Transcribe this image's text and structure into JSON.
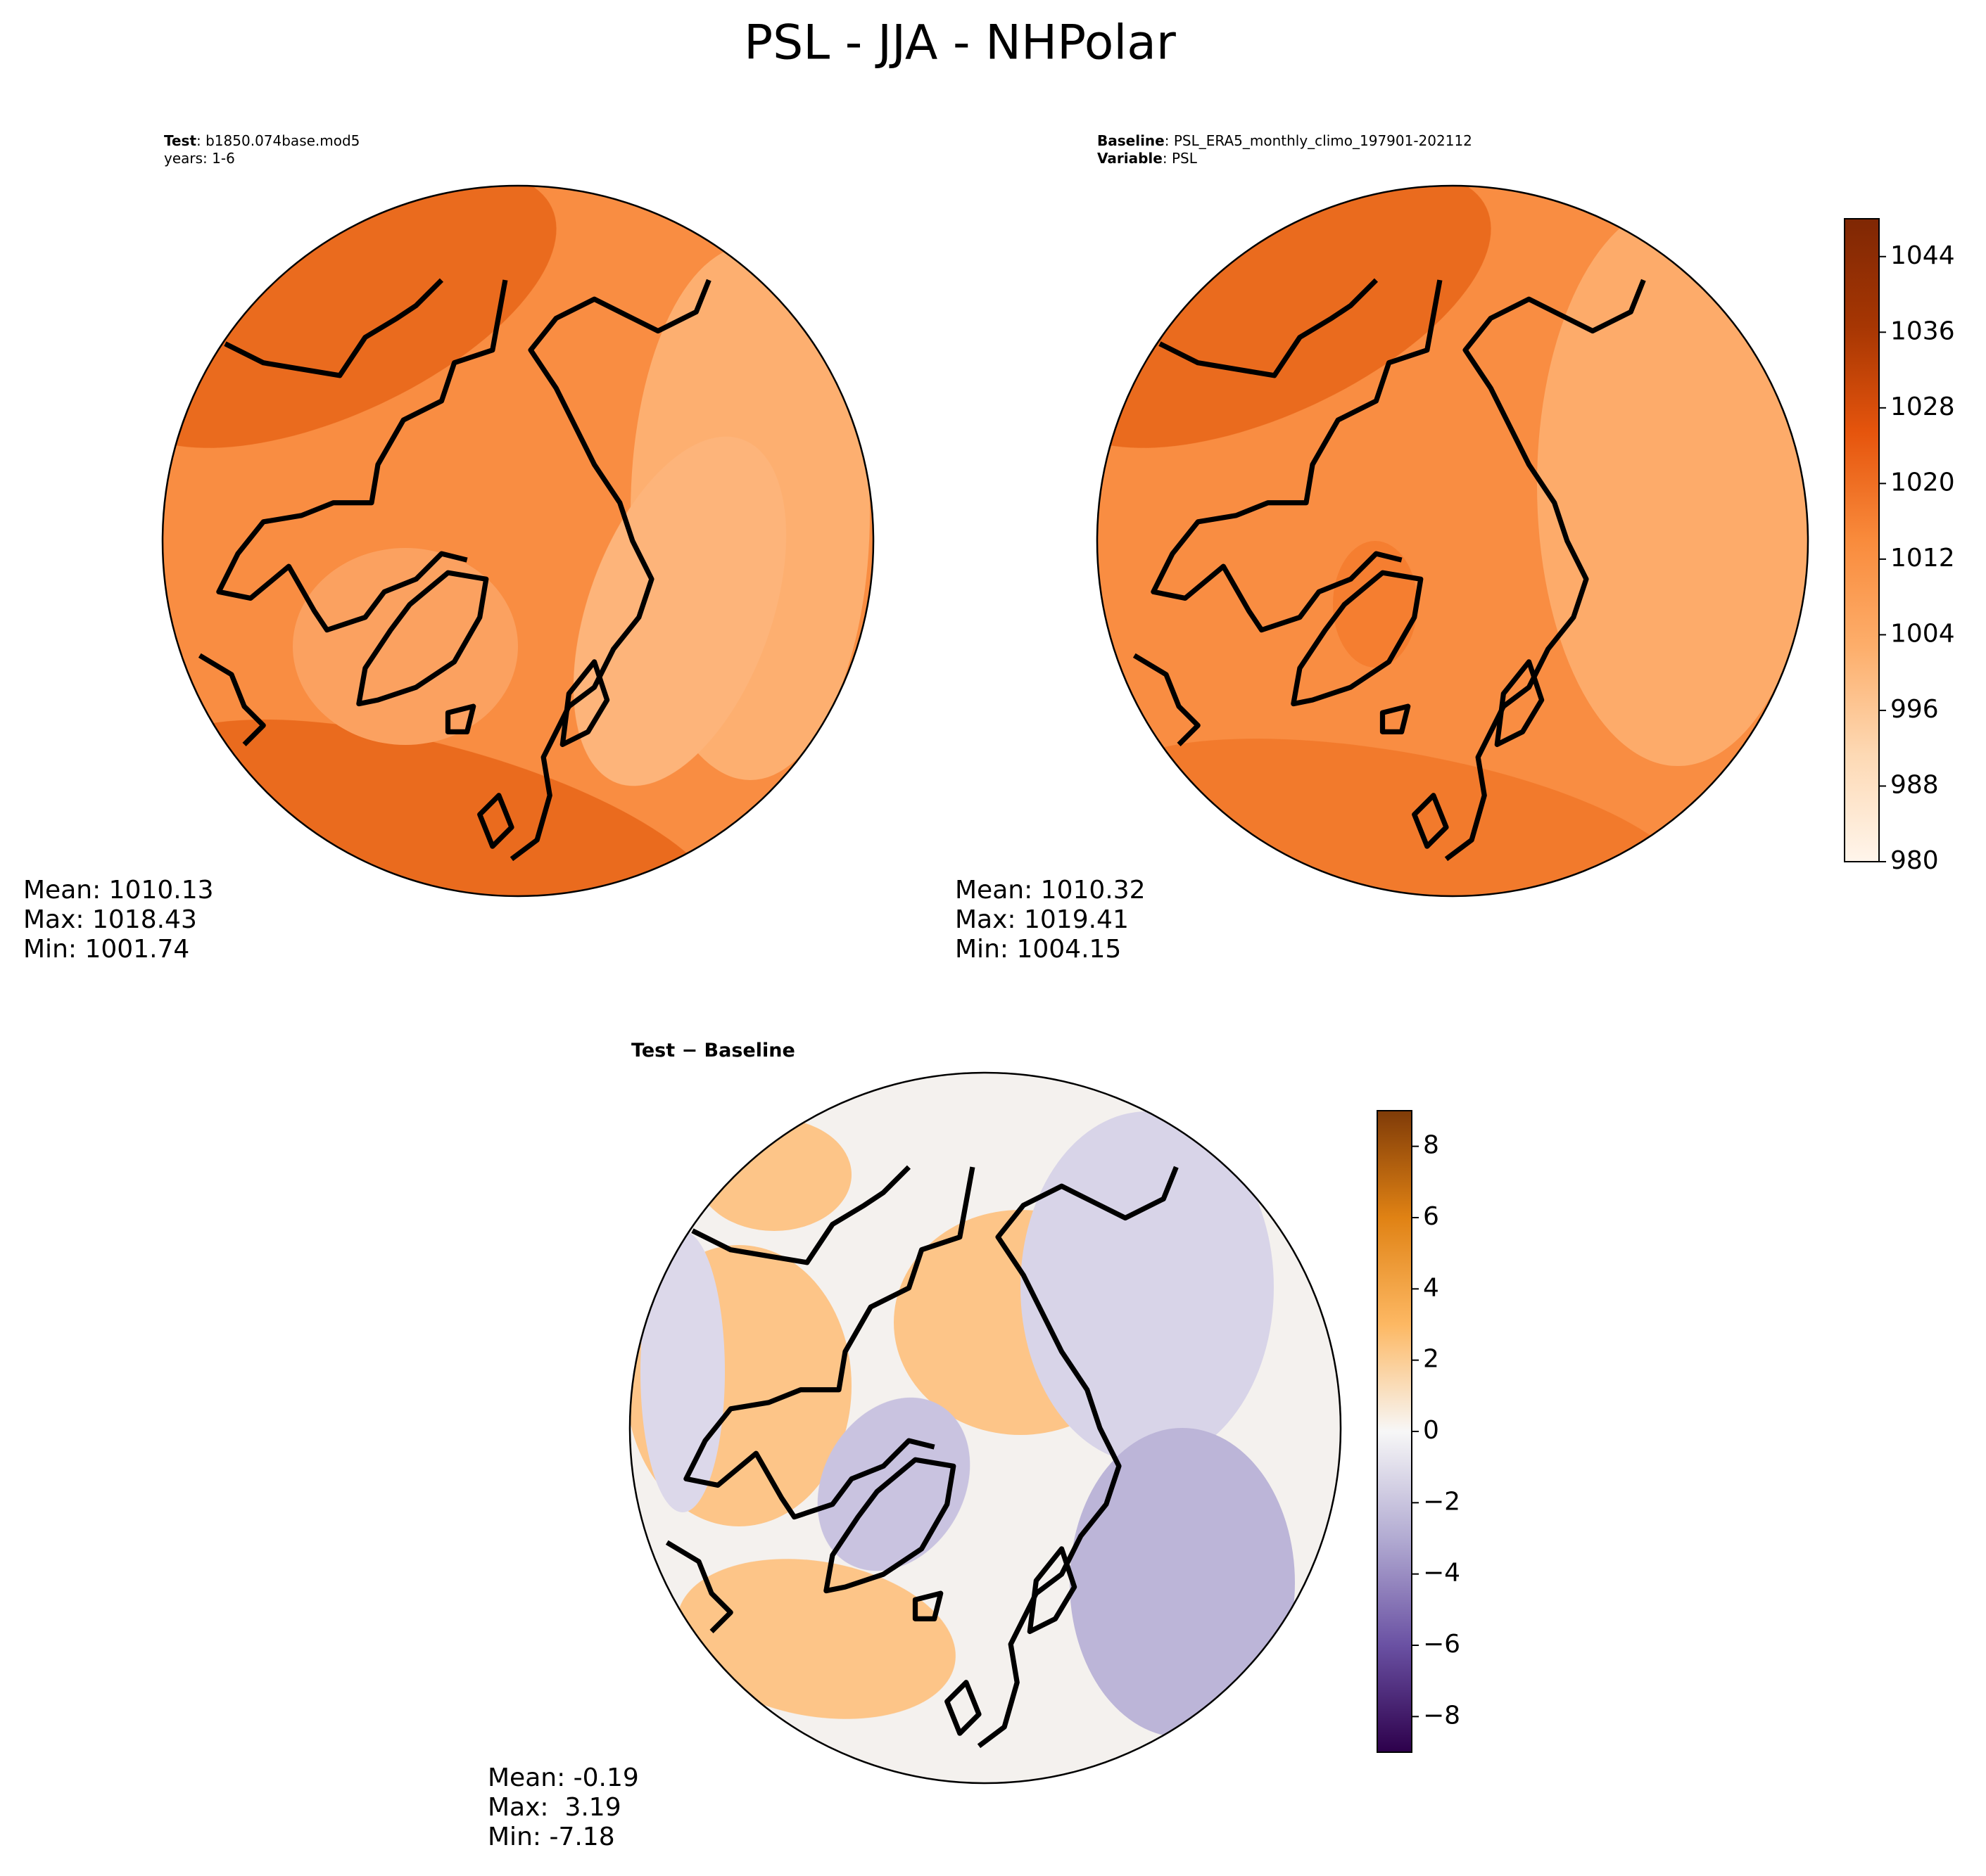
{
  "title": "PSL - JJA - NHPolar",
  "panels": [
    {
      "header": [
        {
          "key": "Test",
          "text": ": b1850.074base.mod5"
        },
        {
          "text": "years: 1-6"
        }
      ],
      "stats": [
        "Mean: 1010.13",
        "Max: 1018.43",
        "Min: 1001.74"
      ]
    },
    {
      "header": [
        {
          "key": "Baseline",
          "text": ": PSL_ERA5_monthly_climo_197901-202112"
        },
        {
          "key": "Variable",
          "text": ": PSL"
        }
      ],
      "stats": [
        "Mean: 1010.32",
        "Max: 1019.41",
        "Min: 1004.15"
      ]
    },
    {
      "header": [
        {
          "key": "Test − Baseline"
        }
      ],
      "stats": [
        "Mean: -0.19",
        "Max:  3.19",
        "Min: -7.18"
      ]
    }
  ],
  "colorbars": [
    {
      "lim": [
        980,
        1048
      ],
      "ticks": [
        980,
        988,
        996,
        1004,
        1012,
        1020,
        1028,
        1036,
        1044
      ],
      "colors": [
        "#fff5eb",
        "#fdd9b4",
        "#fdae6b",
        "#f98b3c",
        "#e6550d",
        "#a63603",
        "#7f2704"
      ]
    },
    {
      "lim": [
        -9,
        9
      ],
      "ticks": [
        {
          "value": -8,
          "label": "−8"
        },
        {
          "value": -6,
          "label": "−6"
        },
        {
          "value": -4,
          "label": "−4"
        },
        {
          "value": -2,
          "label": "−2"
        },
        0,
        2,
        4,
        6,
        8
      ],
      "colors": [
        "#2d004b",
        "#6a51a3",
        "#b2abd2",
        "#f7f7f7",
        "#fdb863",
        "#e08214",
        "#7f3b08"
      ]
    }
  ]
}
